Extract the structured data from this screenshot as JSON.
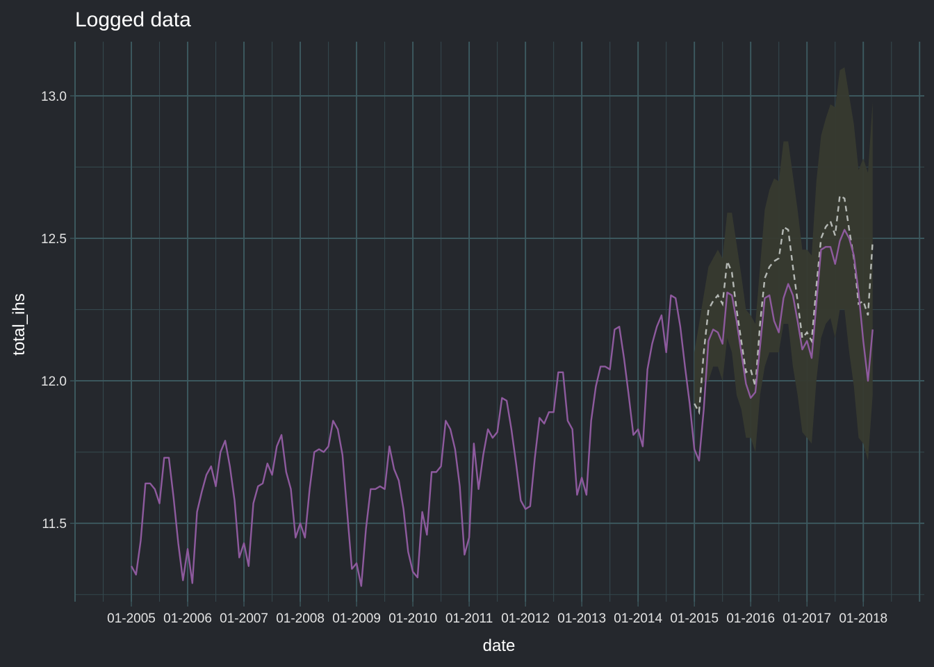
{
  "chart_data": {
    "type": "line",
    "title": "Logged data",
    "xlabel": "date",
    "ylabel": "total_ihs",
    "x_tick_labels": [
      "01-2005",
      "01-2006",
      "01-2007",
      "01-2008",
      "01-2009",
      "01-2010",
      "01-2011",
      "01-2012",
      "01-2013",
      "01-2014",
      "01-2015",
      "01-2016",
      "01-2017",
      "01-2018"
    ],
    "y_tick_labels": [
      "11.5",
      "12.0",
      "12.5",
      "13.0"
    ],
    "xlim": [
      "2004-01",
      "2019-02"
    ],
    "ylim": [
      11.225,
      13.19
    ],
    "grid": true,
    "legend": "none",
    "colors": {
      "observed": "#8e5a9e",
      "forecast": "#b5b9b5",
      "interval": "#373a2f",
      "background": "#25282d",
      "grid": "#3d5a60"
    },
    "series": [
      {
        "style": "solid",
        "start": "2005-01",
        "values": [
          11.35,
          11.32,
          11.44,
          11.64,
          11.64,
          11.62,
          11.57,
          11.73,
          11.73,
          11.59,
          11.43,
          11.3,
          11.41,
          11.29,
          11.54,
          11.61,
          11.67,
          11.7,
          11.63,
          11.75,
          11.79,
          11.7,
          11.58,
          11.38,
          11.43,
          11.35,
          11.57,
          11.63,
          11.64,
          11.71,
          11.67,
          11.77,
          11.81,
          11.68,
          11.62,
          11.45,
          11.5,
          11.45,
          11.62,
          11.75,
          11.76,
          11.75,
          11.77,
          11.86,
          11.83,
          11.74,
          11.54,
          11.34,
          11.36,
          11.28,
          11.48,
          11.62,
          11.62,
          11.63,
          11.62,
          11.77,
          11.69,
          11.65,
          11.55,
          11.4,
          11.33,
          11.31,
          11.54,
          11.46,
          11.68,
          11.68,
          11.7,
          11.86,
          11.83,
          11.76,
          11.63,
          11.39,
          11.45,
          11.78,
          11.62,
          11.74,
          11.83,
          11.8,
          11.82,
          11.94,
          11.93,
          11.83,
          11.71,
          11.58,
          11.55,
          11.56,
          11.73,
          11.87,
          11.85,
          11.89,
          11.89,
          12.03,
          12.03,
          11.86,
          11.83,
          11.6,
          11.66,
          11.6,
          11.86,
          11.98,
          12.05,
          12.05,
          12.04,
          12.18,
          12.19,
          12.08,
          11.95,
          11.81,
          11.83,
          11.77,
          12.04,
          12.13,
          12.19,
          12.23,
          12.1,
          12.3,
          12.29,
          12.19,
          12.05,
          11.92,
          11.76,
          11.72,
          11.9,
          12.14,
          12.18,
          12.17,
          12.13,
          12.31,
          12.3,
          12.21,
          12.1,
          11.99,
          11.94,
          11.96,
          12.12,
          12.29,
          12.3,
          12.21,
          12.17,
          12.29,
          12.34,
          12.3,
          12.21,
          12.11,
          12.14,
          12.08,
          12.27,
          12.46,
          12.47,
          12.47,
          12.41,
          12.49,
          12.53,
          12.5,
          12.44,
          12.31,
          12.14,
          12.0,
          12.18
        ]
      },
      {
        "style": "dashed",
        "start": "2015-01",
        "values": [
          11.92,
          11.89,
          12.1,
          12.25,
          12.28,
          12.3,
          12.27,
          12.42,
          12.38,
          12.25,
          12.14,
          12.03,
          12.04,
          11.98,
          12.2,
          12.36,
          12.4,
          12.42,
          12.43,
          12.54,
          12.53,
          12.4,
          12.28,
          12.15,
          12.17,
          12.14,
          12.33,
          12.5,
          12.54,
          12.56,
          12.51,
          12.65,
          12.64,
          12.53,
          12.43,
          12.27,
          12.28,
          12.23,
          12.49
        ]
      },
      {
        "style": "band",
        "start": "2015-01",
        "lower": [
          11.9,
          11.9,
          12.0,
          12.0,
          12.05,
          12.05,
          12.0,
          12.15,
          12.1,
          11.95,
          11.9,
          11.8,
          11.8,
          11.75,
          11.95,
          12.05,
          12.1,
          12.1,
          12.1,
          12.2,
          12.2,
          12.05,
          11.95,
          11.82,
          11.8,
          11.78,
          12.0,
          12.15,
          12.2,
          12.22,
          12.15,
          12.25,
          12.25,
          12.1,
          11.98,
          11.8,
          11.78,
          11.72,
          11.95
        ],
        "upper": [
          12.1,
          12.2,
          12.3,
          12.4,
          12.43,
          12.46,
          12.43,
          12.59,
          12.59,
          12.48,
          12.37,
          12.25,
          12.23,
          12.2,
          12.4,
          12.6,
          12.67,
          12.71,
          12.7,
          12.84,
          12.84,
          12.72,
          12.6,
          12.46,
          12.46,
          12.44,
          12.7,
          12.86,
          12.92,
          12.97,
          12.96,
          13.09,
          13.1,
          13.0,
          12.9,
          12.74,
          12.78,
          12.73,
          12.98
        ]
      }
    ]
  }
}
